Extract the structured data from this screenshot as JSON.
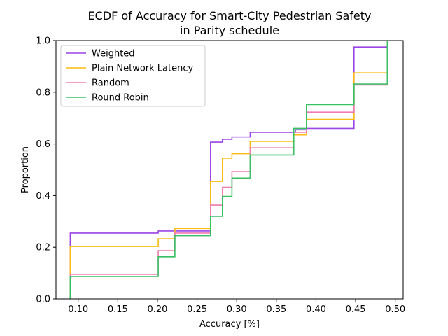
{
  "chart_data": {
    "type": "line",
    "step": true,
    "title_lines": [
      "ECDF of Accuracy for Smart-City Pedestrian Safety",
      "in Parity schedule"
    ],
    "xlabel": "Accuracy [%]",
    "ylabel": "Proportion",
    "xlim": [
      0.072,
      0.51
    ],
    "ylim": [
      0.0,
      1.0
    ],
    "xticks": [
      "0.10",
      "0.15",
      "0.20",
      "0.25",
      "0.30",
      "0.35",
      "0.40",
      "0.45",
      "0.50"
    ],
    "yticks": [
      "0.0",
      "0.2",
      "0.4",
      "0.6",
      "0.8",
      "1.0"
    ],
    "grid": false,
    "legend_position": "upper-left",
    "series": [
      {
        "name": "Weighted",
        "color": "#9b45e6",
        "x": [
          0.09,
          0.201,
          0.222,
          0.267,
          0.282,
          0.294,
          0.317,
          0.374,
          0.388,
          0.448,
          0.49
        ],
        "y": [
          0.255,
          0.263,
          0.263,
          0.607,
          0.618,
          0.627,
          0.645,
          0.655,
          0.66,
          0.975,
          1.0
        ]
      },
      {
        "name": "Plain Network Latency",
        "color": "#fbbb12",
        "x": [
          0.09,
          0.201,
          0.222,
          0.267,
          0.282,
          0.294,
          0.317,
          0.372,
          0.388,
          0.448,
          0.49
        ],
        "y": [
          0.203,
          0.233,
          0.273,
          0.455,
          0.545,
          0.562,
          0.61,
          0.635,
          0.695,
          0.875,
          1.0
        ]
      },
      {
        "name": "Random",
        "color": "#f07bb1",
        "x": [
          0.09,
          0.201,
          0.222,
          0.267,
          0.282,
          0.294,
          0.317,
          0.372,
          0.388,
          0.448,
          0.49
        ],
        "y": [
          0.095,
          0.187,
          0.255,
          0.363,
          0.432,
          0.493,
          0.585,
          0.645,
          0.723,
          0.828,
          1.0
        ]
      },
      {
        "name": "Round Robin",
        "color": "#36c063",
        "x": [
          0.09,
          0.201,
          0.222,
          0.267,
          0.282,
          0.294,
          0.317,
          0.372,
          0.388,
          0.448,
          0.49
        ],
        "y": [
          0.087,
          0.163,
          0.245,
          0.32,
          0.397,
          0.468,
          0.557,
          0.66,
          0.752,
          0.832,
          1.0
        ]
      }
    ]
  }
}
